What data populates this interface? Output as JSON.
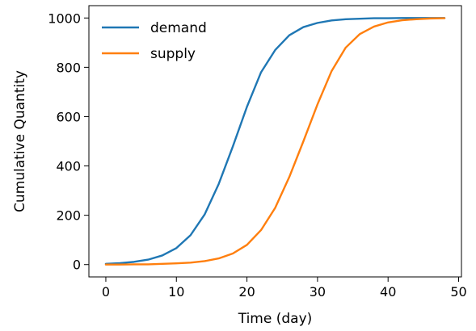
{
  "chart_data": {
    "type": "line",
    "xlabel": "Time (day)",
    "ylabel": "Cumulative Quantity",
    "xlim": [
      -2.4,
      50.4
    ],
    "ylim": [
      -50,
      1050
    ],
    "xticks": [
      0,
      10,
      20,
      30,
      40,
      50
    ],
    "yticks": [
      0,
      200,
      400,
      600,
      800,
      1000
    ],
    "grid": false,
    "legend": "top-left",
    "x": [
      0,
      2,
      4,
      6,
      8,
      10,
      12,
      14,
      16,
      18,
      20,
      22,
      24,
      26,
      28,
      30,
      32,
      34,
      36,
      38,
      40,
      42,
      44,
      46,
      48
    ],
    "series": [
      {
        "name": "demand",
        "color": "#1f77b4",
        "values": [
          3,
          6,
          11,
          20,
          37,
          67,
          119,
          203,
          327,
          479,
          640,
          780,
          870,
          930,
          963,
          980,
          990,
          995,
          997,
          999,
          999,
          1000,
          1000,
          1000,
          1000
        ]
      },
      {
        "name": "supply",
        "color": "#ff7f0e",
        "values": [
          0,
          0,
          1,
          1,
          3,
          5,
          8,
          14,
          25,
          45,
          80,
          140,
          230,
          355,
          500,
          650,
          785,
          880,
          935,
          965,
          982,
          991,
          995,
          998,
          999
        ]
      }
    ]
  }
}
